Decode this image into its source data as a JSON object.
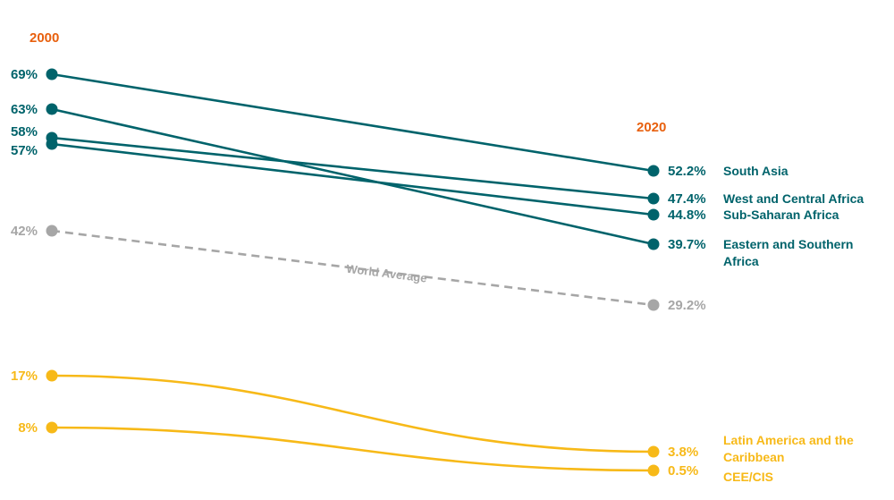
{
  "chart_data": {
    "type": "line",
    "subtype": "slope",
    "x": [
      "2000",
      "2020"
    ],
    "start_label": "2000",
    "end_label": "2020",
    "colors": {
      "teal": "#00636b",
      "gray": "#a6a6a6",
      "gold": "#f7b918",
      "year": "#e8600e"
    },
    "ylim": [
      0,
      72
    ],
    "series": [
      {
        "name": "South Asia",
        "name_lines": [
          "South Asia"
        ],
        "values": [
          69,
          52.2
        ],
        "start_label": "69%",
        "end_label": "52.2%",
        "group": "teal"
      },
      {
        "name": "West and Central Africa",
        "name_lines": [
          "West and Central Africa"
        ],
        "values": [
          58,
          47.4
        ],
        "start_label": "58%",
        "end_label": "47.4%",
        "group": "teal"
      },
      {
        "name": "Sub-Saharan Africa",
        "name_lines": [
          "Sub-Saharan Africa"
        ],
        "values": [
          57,
          44.8
        ],
        "start_label": "57%",
        "end_label": "44.8%",
        "group": "teal"
      },
      {
        "name": "Eastern and Southern Africa",
        "name_lines": [
          "Eastern and Southern",
          "Africa"
        ],
        "values": [
          63,
          39.7
        ],
        "start_label": "63%",
        "end_label": "39.7%",
        "group": "teal"
      },
      {
        "name": "World Average",
        "name_lines": [],
        "values": [
          42,
          29.2
        ],
        "start_label": "42%",
        "end_label": "29.2%",
        "group": "gray",
        "dashed": true
      },
      {
        "name": "Latin America and the Caribbean",
        "name_lines": [
          "Latin America and the",
          "Caribbean"
        ],
        "values": [
          17,
          3.8
        ],
        "start_label": "17%",
        "end_label": "3.8%",
        "group": "gold",
        "curved": true
      },
      {
        "name": "CEE/CIS",
        "name_lines": [
          "CEE/CIS"
        ],
        "values": [
          8,
          0.5
        ],
        "start_label": "8%",
        "end_label": "0.5%",
        "group": "gold",
        "curved": true
      }
    ],
    "annotations": [
      {
        "text": "World Average",
        "series": "World Average"
      }
    ]
  }
}
